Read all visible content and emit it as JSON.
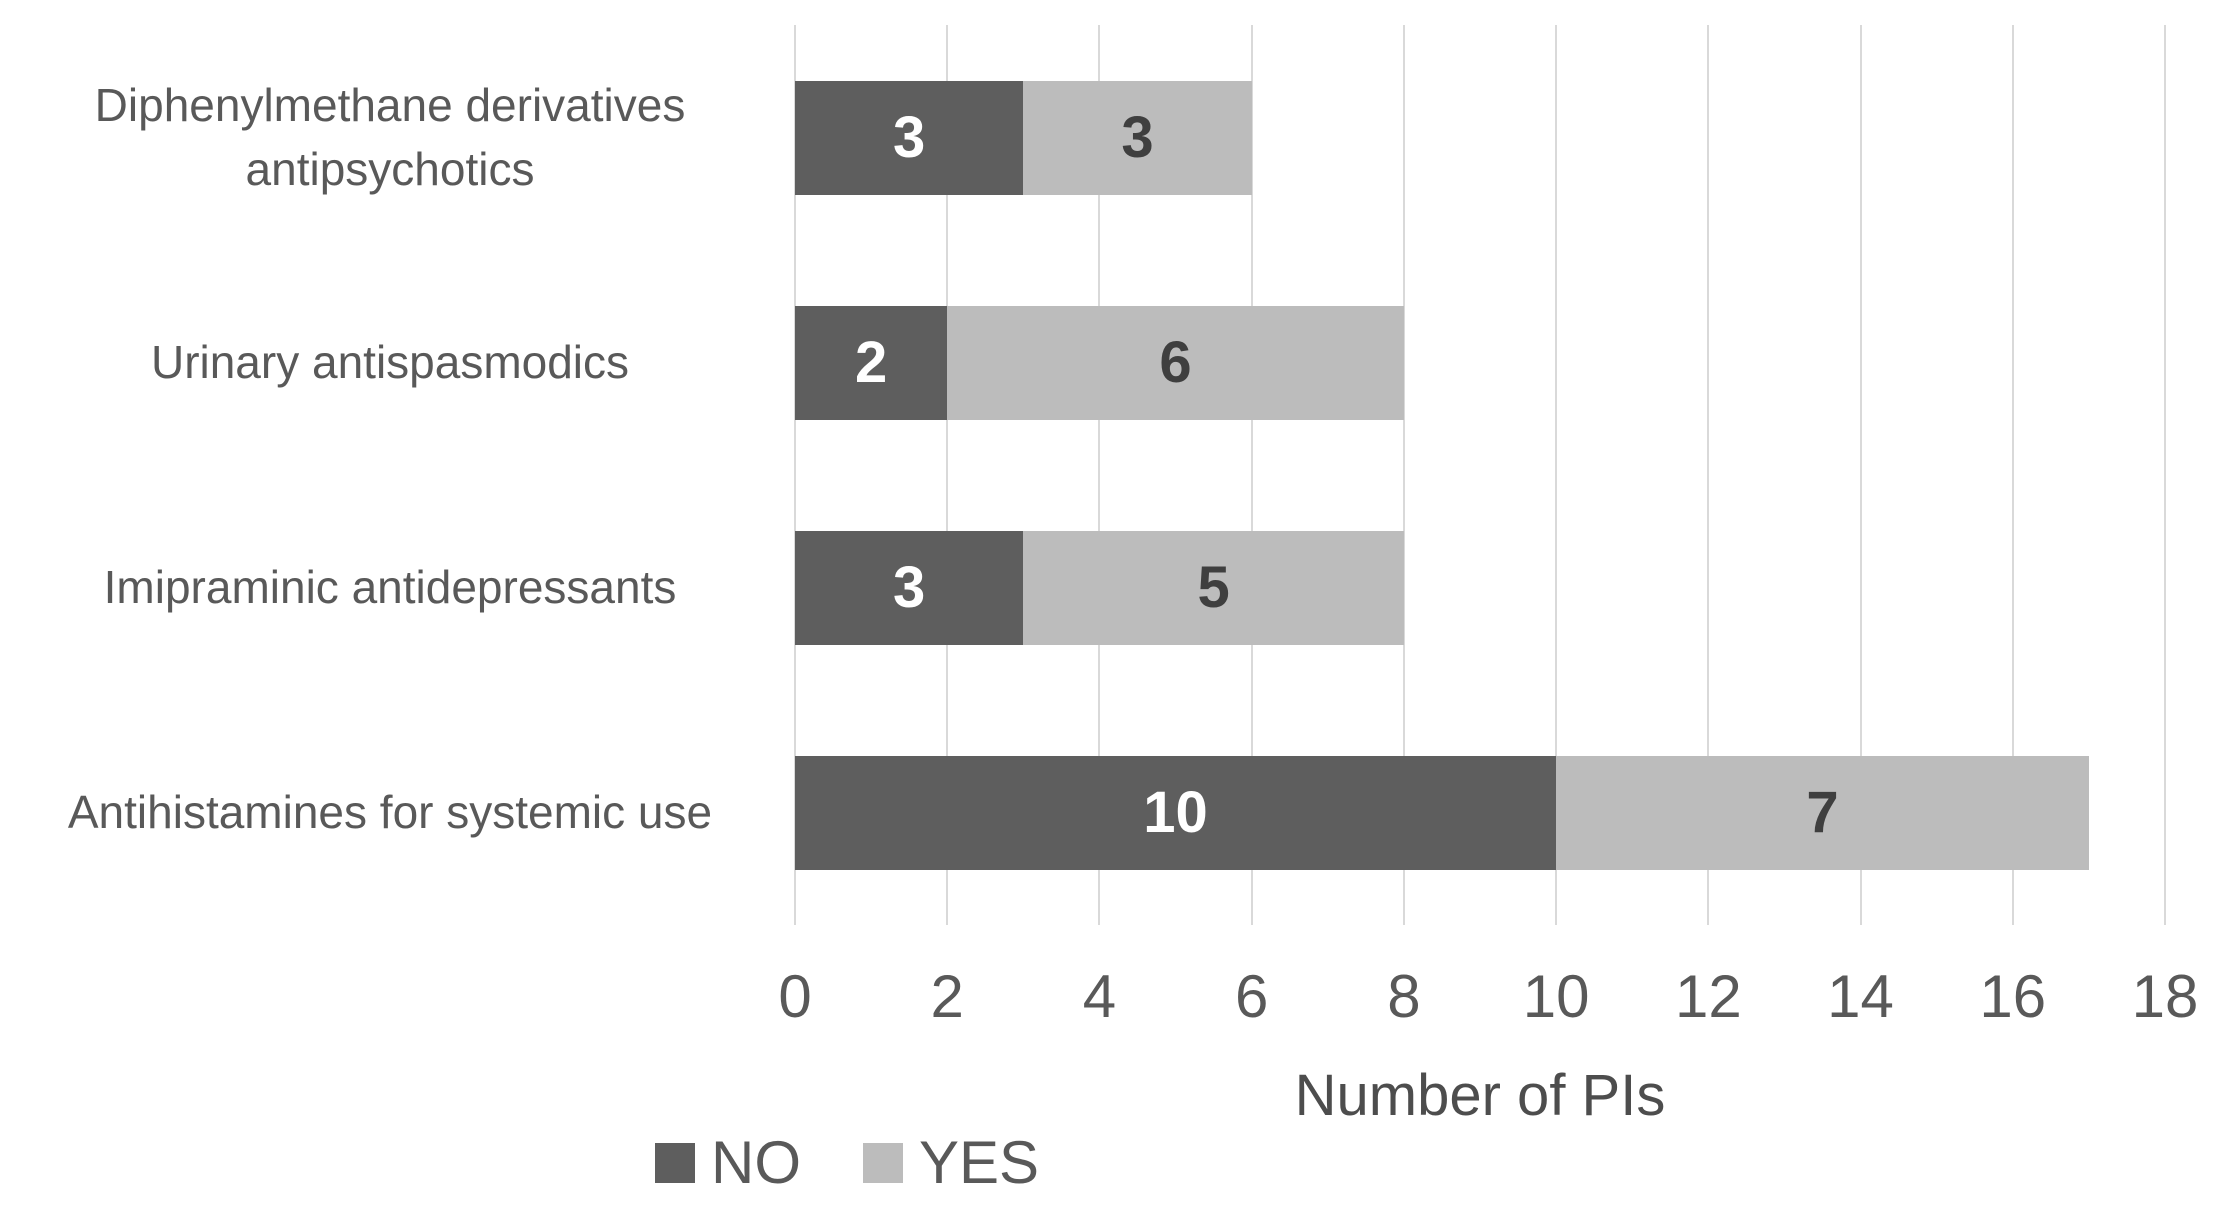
{
  "chart_data": {
    "type": "bar",
    "orientation": "horizontal",
    "stacked": true,
    "title": "",
    "categories": [
      "Diphenylmethane derivatives antipsychotics",
      "Urinary antispasmodics",
      "Imipraminic antidepressants",
      "Antihistamines for systemic use"
    ],
    "series": [
      {
        "name": "NO",
        "values": [
          3,
          2,
          3,
          10
        ],
        "color": "#5e5e5e",
        "label_color": "#ffffff"
      },
      {
        "name": "YES",
        "values": [
          3,
          6,
          5,
          7
        ],
        "color": "#bcbcbc",
        "label_color": "#3f3f3f"
      }
    ],
    "xlabel": "Number of PIs",
    "ylabel": "",
    "xlim": [
      0,
      18
    ],
    "xticks": [
      0,
      2,
      4,
      6,
      8,
      10,
      12,
      14,
      16,
      18
    ],
    "grid": true,
    "legend_position": "bottom-left"
  },
  "colors": {
    "grid": "#d9d9d9",
    "text": "#595959",
    "background": "#ffffff"
  }
}
